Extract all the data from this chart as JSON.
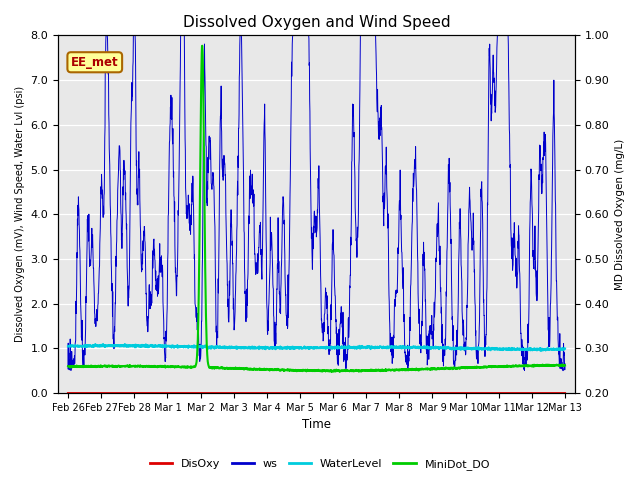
{
  "title": "Dissolved Oxygen and Wind Speed",
  "ylabel_left": "Dissolved Oxygen (mV), Wind Speed, Water Lvl (psi)",
  "ylabel_right": "MD Dissolved Oxygen (mg/L)",
  "xlabel": "Time",
  "ylim_left": [
    0.0,
    8.0
  ],
  "ylim_right": [
    0.2,
    1.0
  ],
  "annotation_text": "EE_met",
  "annotation_fgcolor": "#aa0000",
  "annotation_bgcolor": "#ffff99",
  "annotation_edgecolor": "#aa6600",
  "plot_bg_color": "#e8e8e8",
  "x_tick_labels": [
    "Feb 26",
    "Feb 27",
    "Feb 28",
    "Mar 1",
    "Mar 2",
    "Mar 3",
    "Mar 4",
    "Mar 5",
    "Mar 6",
    "Mar 7",
    "Mar 8",
    "Mar 9",
    "Mar 10",
    "Mar 11",
    "Mar 12",
    "Mar 13"
  ],
  "series_colors": {
    "DisOxy": "#dd0000",
    "ws": "#0000cc",
    "WaterLevel": "#00ccdd",
    "MiniDot_DO": "#00cc00"
  },
  "series_lw": {
    "DisOxy": 1.5,
    "ws": 0.7,
    "WaterLevel": 1.5,
    "MiniDot_DO": 1.5
  },
  "title_fontsize": 11,
  "ytick_left": [
    0.0,
    1.0,
    2.0,
    3.0,
    4.0,
    5.0,
    6.0,
    7.0,
    8.0
  ],
  "ytick_right": [
    0.2,
    0.3,
    0.4,
    0.5,
    0.6,
    0.7,
    0.8,
    0.9,
    1.0
  ]
}
